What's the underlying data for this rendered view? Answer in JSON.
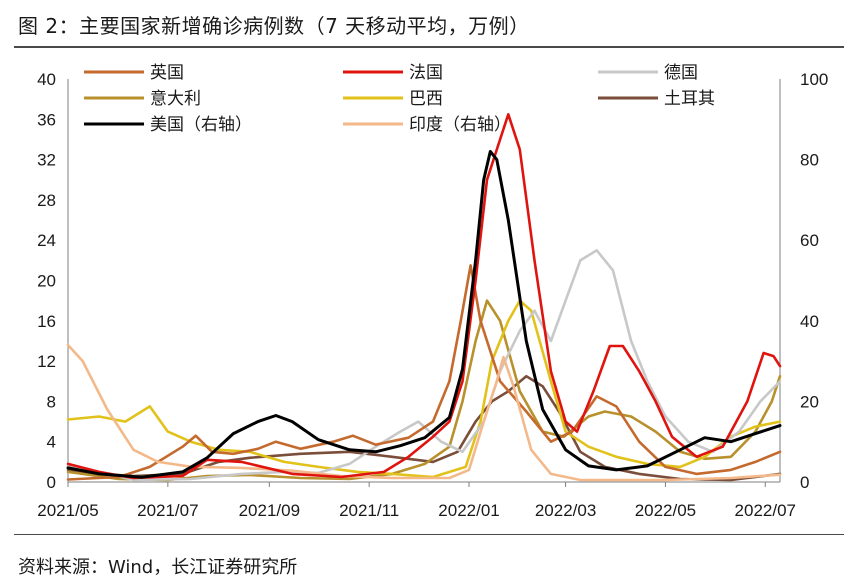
{
  "title": "图 2：主要国家新增确诊病例数（7 天移动平均，万例）",
  "source": "资料来源：Wind，长江证券研究所",
  "chart_data": {
    "type": "line",
    "x_ticks": [
      "2021/05",
      "2021/07",
      "2021/09",
      "2021/11",
      "2022/01",
      "2022/03",
      "2022/05",
      "2022/07"
    ],
    "x_range": [
      "2021-05-01",
      "2022-07-10"
    ],
    "y_left": {
      "range": [
        0,
        40
      ],
      "ticks": [
        0,
        4,
        8,
        12,
        16,
        20,
        24,
        28,
        32,
        36,
        40
      ]
    },
    "y_right": {
      "range": [
        0,
        100
      ],
      "ticks": [
        0,
        20,
        40,
        60,
        80,
        100
      ]
    },
    "legend": [
      "英国",
      "法国",
      "德国",
      "意大利",
      "巴西",
      "土耳其",
      "美国（右轴）",
      "印度（右轴）"
    ],
    "series": [
      {
        "name": "英国",
        "axis": "left",
        "color": "#C46A2E",
        "points": [
          [
            "2021-05-01",
            0.25
          ],
          [
            "2021-06-01",
            0.5
          ],
          [
            "2021-06-20",
            1.5
          ],
          [
            "2021-07-10",
            3.5
          ],
          [
            "2021-07-18",
            4.6
          ],
          [
            "2021-07-28",
            3.0
          ],
          [
            "2021-08-10",
            2.8
          ],
          [
            "2021-08-25",
            3.3
          ],
          [
            "2021-09-05",
            4.0
          ],
          [
            "2021-09-20",
            3.3
          ],
          [
            "2021-10-10",
            4.0
          ],
          [
            "2021-10-22",
            4.6
          ],
          [
            "2021-11-05",
            3.7
          ],
          [
            "2021-11-25",
            4.4
          ],
          [
            "2021-12-10",
            6.0
          ],
          [
            "2021-12-20",
            10.0
          ],
          [
            "2021-12-27",
            16.0
          ],
          [
            "2022-01-02",
            21.5
          ],
          [
            "2022-01-08",
            16.0
          ],
          [
            "2022-01-20",
            10.0
          ],
          [
            "2022-02-05",
            7.0
          ],
          [
            "2022-02-20",
            4.0
          ],
          [
            "2022-03-05",
            5.0
          ],
          [
            "2022-03-20",
            8.5
          ],
          [
            "2022-04-01",
            7.5
          ],
          [
            "2022-04-15",
            4.0
          ],
          [
            "2022-05-01",
            1.5
          ],
          [
            "2022-05-20",
            0.8
          ],
          [
            "2022-06-10",
            1.2
          ],
          [
            "2022-06-25",
            2.0
          ],
          [
            "2022-07-10",
            3.0
          ]
        ]
      },
      {
        "name": "法国",
        "axis": "left",
        "color": "#E0140F",
        "points": [
          [
            "2021-05-01",
            1.8
          ],
          [
            "2021-05-20",
            1.0
          ],
          [
            "2021-06-10",
            0.4
          ],
          [
            "2021-07-10",
            0.6
          ],
          [
            "2021-07-25",
            2.2
          ],
          [
            "2021-08-15",
            2.0
          ],
          [
            "2021-09-15",
            0.8
          ],
          [
            "2021-10-15",
            0.5
          ],
          [
            "2021-11-10",
            1.0
          ],
          [
            "2021-11-25",
            2.5
          ],
          [
            "2021-12-10",
            4.5
          ],
          [
            "2021-12-20",
            6.0
          ],
          [
            "2021-12-28",
            10.0
          ],
          [
            "2022-01-05",
            20.0
          ],
          [
            "2022-01-12",
            30.0
          ],
          [
            "2022-01-20",
            34.0
          ],
          [
            "2022-01-25",
            36.5
          ],
          [
            "2022-02-01",
            33.0
          ],
          [
            "2022-02-10",
            22.0
          ],
          [
            "2022-02-20",
            11.0
          ],
          [
            "2022-03-01",
            6.0
          ],
          [
            "2022-03-08",
            5.0
          ],
          [
            "2022-03-18",
            9.0
          ],
          [
            "2022-03-28",
            13.5
          ],
          [
            "2022-04-05",
            13.5
          ],
          [
            "2022-04-15",
            11.0
          ],
          [
            "2022-04-25",
            8.0
          ],
          [
            "2022-05-05",
            4.5
          ],
          [
            "2022-05-20",
            2.5
          ],
          [
            "2022-06-05",
            3.5
          ],
          [
            "2022-06-20",
            8.0
          ],
          [
            "2022-06-30",
            12.8
          ],
          [
            "2022-07-06",
            12.5
          ],
          [
            "2022-07-10",
            11.5
          ]
        ]
      },
      {
        "name": "德国",
        "axis": "left",
        "color": "#C8C8C8",
        "points": [
          [
            "2021-05-01",
            1.6
          ],
          [
            "2021-05-20",
            1.0
          ],
          [
            "2021-06-10",
            0.2
          ],
          [
            "2021-07-15",
            0.3
          ],
          [
            "2021-08-15",
            0.8
          ],
          [
            "2021-09-10",
            1.0
          ],
          [
            "2021-10-01",
            0.9
          ],
          [
            "2021-10-20",
            1.8
          ],
          [
            "2021-11-05",
            3.5
          ],
          [
            "2021-11-20",
            5.0
          ],
          [
            "2021-12-01",
            6.0
          ],
          [
            "2021-12-15",
            4.0
          ],
          [
            "2021-12-28",
            3.0
          ],
          [
            "2022-01-10",
            6.0
          ],
          [
            "2022-01-20",
            11.0
          ],
          [
            "2022-02-01",
            15.0
          ],
          [
            "2022-02-10",
            17.0
          ],
          [
            "2022-02-20",
            14.0
          ],
          [
            "2022-03-01",
            18.0
          ],
          [
            "2022-03-10",
            22.0
          ],
          [
            "2022-03-20",
            23.0
          ],
          [
            "2022-03-30",
            21.0
          ],
          [
            "2022-04-10",
            14.0
          ],
          [
            "2022-04-20",
            10.0
          ],
          [
            "2022-05-01",
            6.5
          ],
          [
            "2022-05-15",
            4.0
          ],
          [
            "2022-05-30",
            3.0
          ],
          [
            "2022-06-15",
            5.0
          ],
          [
            "2022-06-28",
            8.0
          ],
          [
            "2022-07-10",
            10.0
          ]
        ]
      },
      {
        "name": "意大利",
        "axis": "left",
        "color": "#B8912C",
        "points": [
          [
            "2021-05-01",
            1.0
          ],
          [
            "2021-06-01",
            0.3
          ],
          [
            "2021-07-01",
            0.2
          ],
          [
            "2021-07-25",
            0.6
          ],
          [
            "2021-08-20",
            0.7
          ],
          [
            "2021-09-20",
            0.4
          ],
          [
            "2021-10-20",
            0.3
          ],
          [
            "2021-11-15",
            0.8
          ],
          [
            "2021-12-05",
            1.8
          ],
          [
            "2021-12-20",
            3.5
          ],
          [
            "2021-12-28",
            8.0
          ],
          [
            "2022-01-05",
            14.0
          ],
          [
            "2022-01-12",
            18.0
          ],
          [
            "2022-01-20",
            16.0
          ],
          [
            "2022-02-01",
            9.0
          ],
          [
            "2022-02-15",
            5.0
          ],
          [
            "2022-02-28",
            4.5
          ],
          [
            "2022-03-15",
            6.5
          ],
          [
            "2022-03-25",
            7.0
          ],
          [
            "2022-04-10",
            6.5
          ],
          [
            "2022-04-25",
            5.0
          ],
          [
            "2022-05-10",
            3.0
          ],
          [
            "2022-05-25",
            2.3
          ],
          [
            "2022-06-10",
            2.5
          ],
          [
            "2022-06-25",
            5.0
          ],
          [
            "2022-07-05",
            8.0
          ],
          [
            "2022-07-10",
            10.5
          ]
        ]
      },
      {
        "name": "巴西",
        "axis": "left",
        "color": "#E2C21A",
        "points": [
          [
            "2021-05-01",
            6.2
          ],
          [
            "2021-05-20",
            6.5
          ],
          [
            "2021-06-05",
            6.0
          ],
          [
            "2021-06-20",
            7.5
          ],
          [
            "2021-07-01",
            5.0
          ],
          [
            "2021-07-15",
            4.0
          ],
          [
            "2021-08-01",
            3.2
          ],
          [
            "2021-08-20",
            3.0
          ],
          [
            "2021-09-10",
            2.0
          ],
          [
            "2021-10-01",
            1.5
          ],
          [
            "2021-10-25",
            1.0
          ],
          [
            "2021-11-15",
            0.8
          ],
          [
            "2021-12-10",
            0.5
          ],
          [
            "2021-12-30",
            1.5
          ],
          [
            "2022-01-08",
            6.0
          ],
          [
            "2022-01-15",
            12.0
          ],
          [
            "2022-01-25",
            16.0
          ],
          [
            "2022-02-01",
            18.0
          ],
          [
            "2022-02-08",
            17.0
          ],
          [
            "2022-02-20",
            10.0
          ],
          [
            "2022-03-01",
            5.0
          ],
          [
            "2022-03-15",
            3.5
          ],
          [
            "2022-04-01",
            2.5
          ],
          [
            "2022-04-20",
            1.8
          ],
          [
            "2022-05-10",
            1.5
          ],
          [
            "2022-05-25",
            2.5
          ],
          [
            "2022-06-10",
            4.5
          ],
          [
            "2022-06-25",
            5.5
          ],
          [
            "2022-07-10",
            6.0
          ]
        ]
      },
      {
        "name": "土耳其",
        "axis": "left",
        "color": "#7A4E3A",
        "points": [
          [
            "2021-05-01",
            1.2
          ],
          [
            "2021-05-20",
            0.8
          ],
          [
            "2021-06-10",
            0.6
          ],
          [
            "2021-07-10",
            0.8
          ],
          [
            "2021-08-01",
            2.0
          ],
          [
            "2021-08-20",
            2.4
          ],
          [
            "2021-09-20",
            2.8
          ],
          [
            "2021-10-20",
            3.0
          ],
          [
            "2021-11-15",
            2.5
          ],
          [
            "2021-12-10",
            2.0
          ],
          [
            "2021-12-25",
            3.0
          ],
          [
            "2022-01-05",
            6.0
          ],
          [
            "2022-01-15",
            8.0
          ],
          [
            "2022-01-25",
            9.0
          ],
          [
            "2022-02-05",
            10.5
          ],
          [
            "2022-02-15",
            9.5
          ],
          [
            "2022-02-25",
            7.0
          ],
          [
            "2022-03-10",
            3.0
          ],
          [
            "2022-03-25",
            1.5
          ],
          [
            "2022-04-15",
            0.8
          ],
          [
            "2022-05-10",
            0.3
          ],
          [
            "2022-06-10",
            0.2
          ],
          [
            "2022-07-10",
            0.8
          ]
        ]
      },
      {
        "name": "美国（右轴）",
        "axis": "right",
        "color": "#000000",
        "points": [
          [
            "2021-05-01",
            3.5
          ],
          [
            "2021-05-20",
            2.0
          ],
          [
            "2021-06-15",
            1.2
          ],
          [
            "2021-07-10",
            2.5
          ],
          [
            "2021-07-25",
            6.0
          ],
          [
            "2021-08-10",
            12.0
          ],
          [
            "2021-08-25",
            15.0
          ],
          [
            "2021-09-05",
            16.5
          ],
          [
            "2021-09-15",
            15.0
          ],
          [
            "2021-10-01",
            10.5
          ],
          [
            "2021-10-20",
            8.0
          ],
          [
            "2021-11-05",
            7.5
          ],
          [
            "2021-11-20",
            9.0
          ],
          [
            "2021-12-05",
            11.0
          ],
          [
            "2021-12-20",
            16.0
          ],
          [
            "2021-12-28",
            28.0
          ],
          [
            "2022-01-05",
            55.0
          ],
          [
            "2022-01-10",
            75.0
          ],
          [
            "2022-01-14",
            82.0
          ],
          [
            "2022-01-18",
            80.0
          ],
          [
            "2022-01-25",
            65.0
          ],
          [
            "2022-02-05",
            35.0
          ],
          [
            "2022-02-15",
            18.0
          ],
          [
            "2022-03-01",
            8.0
          ],
          [
            "2022-03-15",
            4.0
          ],
          [
            "2022-04-01",
            3.0
          ],
          [
            "2022-04-20",
            4.0
          ],
          [
            "2022-05-10",
            8.0
          ],
          [
            "2022-05-25",
            11.0
          ],
          [
            "2022-06-10",
            10.0
          ],
          [
            "2022-06-25",
            12.0
          ],
          [
            "2022-07-10",
            14.0
          ]
        ]
      },
      {
        "name": "印度（右轴）",
        "axis": "right",
        "color": "#F4B98A",
        "points": [
          [
            "2021-05-01",
            34.0
          ],
          [
            "2021-05-10",
            30.0
          ],
          [
            "2021-05-25",
            18.0
          ],
          [
            "2021-06-10",
            8.0
          ],
          [
            "2021-06-25",
            5.0
          ],
          [
            "2021-07-15",
            3.8
          ],
          [
            "2021-08-15",
            3.5
          ],
          [
            "2021-09-15",
            2.8
          ],
          [
            "2021-10-15",
            1.5
          ],
          [
            "2021-11-15",
            1.0
          ],
          [
            "2021-12-20",
            1.0
          ],
          [
            "2022-01-01",
            3.0
          ],
          [
            "2022-01-10",
            15.0
          ],
          [
            "2022-01-18",
            25.0
          ],
          [
            "2022-01-22",
            31.0
          ],
          [
            "2022-01-28",
            24.0
          ],
          [
            "2022-02-08",
            8.0
          ],
          [
            "2022-02-20",
            2.0
          ],
          [
            "2022-03-10",
            0.5
          ],
          [
            "2022-05-01",
            0.5
          ],
          [
            "2022-06-10",
            1.0
          ],
          [
            "2022-07-10",
            1.8
          ]
        ]
      }
    ]
  }
}
